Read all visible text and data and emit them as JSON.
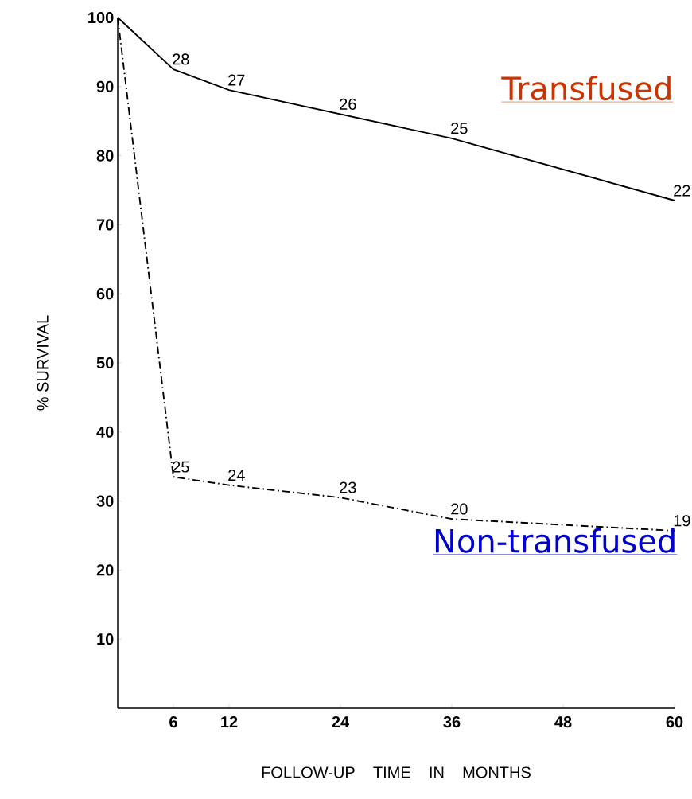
{
  "chart_data": {
    "type": "line",
    "xlabel": "FOLLOW-UP TIME IN MONTHS",
    "ylabel": "% SURVIVAL",
    "xlim": [
      0,
      60
    ],
    "ylim": [
      0,
      100
    ],
    "xticks": [
      6,
      12,
      24,
      36,
      48,
      60
    ],
    "yticks": [
      10,
      20,
      30,
      40,
      50,
      60,
      70,
      80,
      90,
      100
    ],
    "grid": false,
    "legend": false,
    "marker": "none",
    "series": [
      {
        "name": "Transfused",
        "color": "#000000",
        "line_style": "solid",
        "x": [
          0,
          6,
          12,
          24,
          36,
          60
        ],
        "values": [
          100,
          92.5,
          89.5,
          86,
          82.5,
          73.5
        ]
      },
      {
        "name": "Non-transfused",
        "color": "#000000",
        "line_style": "dashdot",
        "x": [
          0,
          6,
          12,
          24,
          36,
          60
        ],
        "values": [
          100,
          33.5,
          32.3,
          30.5,
          27.4,
          25.7
        ]
      }
    ],
    "annotations": [
      {
        "text": "28",
        "x": 6,
        "y": 92.5
      },
      {
        "text": "27",
        "x": 12,
        "y": 89.5
      },
      {
        "text": "26",
        "x": 24,
        "y": 86
      },
      {
        "text": "25",
        "x": 36,
        "y": 82.5
      },
      {
        "text": "22",
        "x": 60,
        "y": 73.5
      },
      {
        "text": "25",
        "x": 6,
        "y": 33.5
      },
      {
        "text": "24",
        "x": 12,
        "y": 32.3
      },
      {
        "text": "23",
        "x": 24,
        "y": 30.5
      },
      {
        "text": "20",
        "x": 36,
        "y": 27.4
      },
      {
        "text": "19",
        "x": 60,
        "y": 25.7
      }
    ]
  }
}
